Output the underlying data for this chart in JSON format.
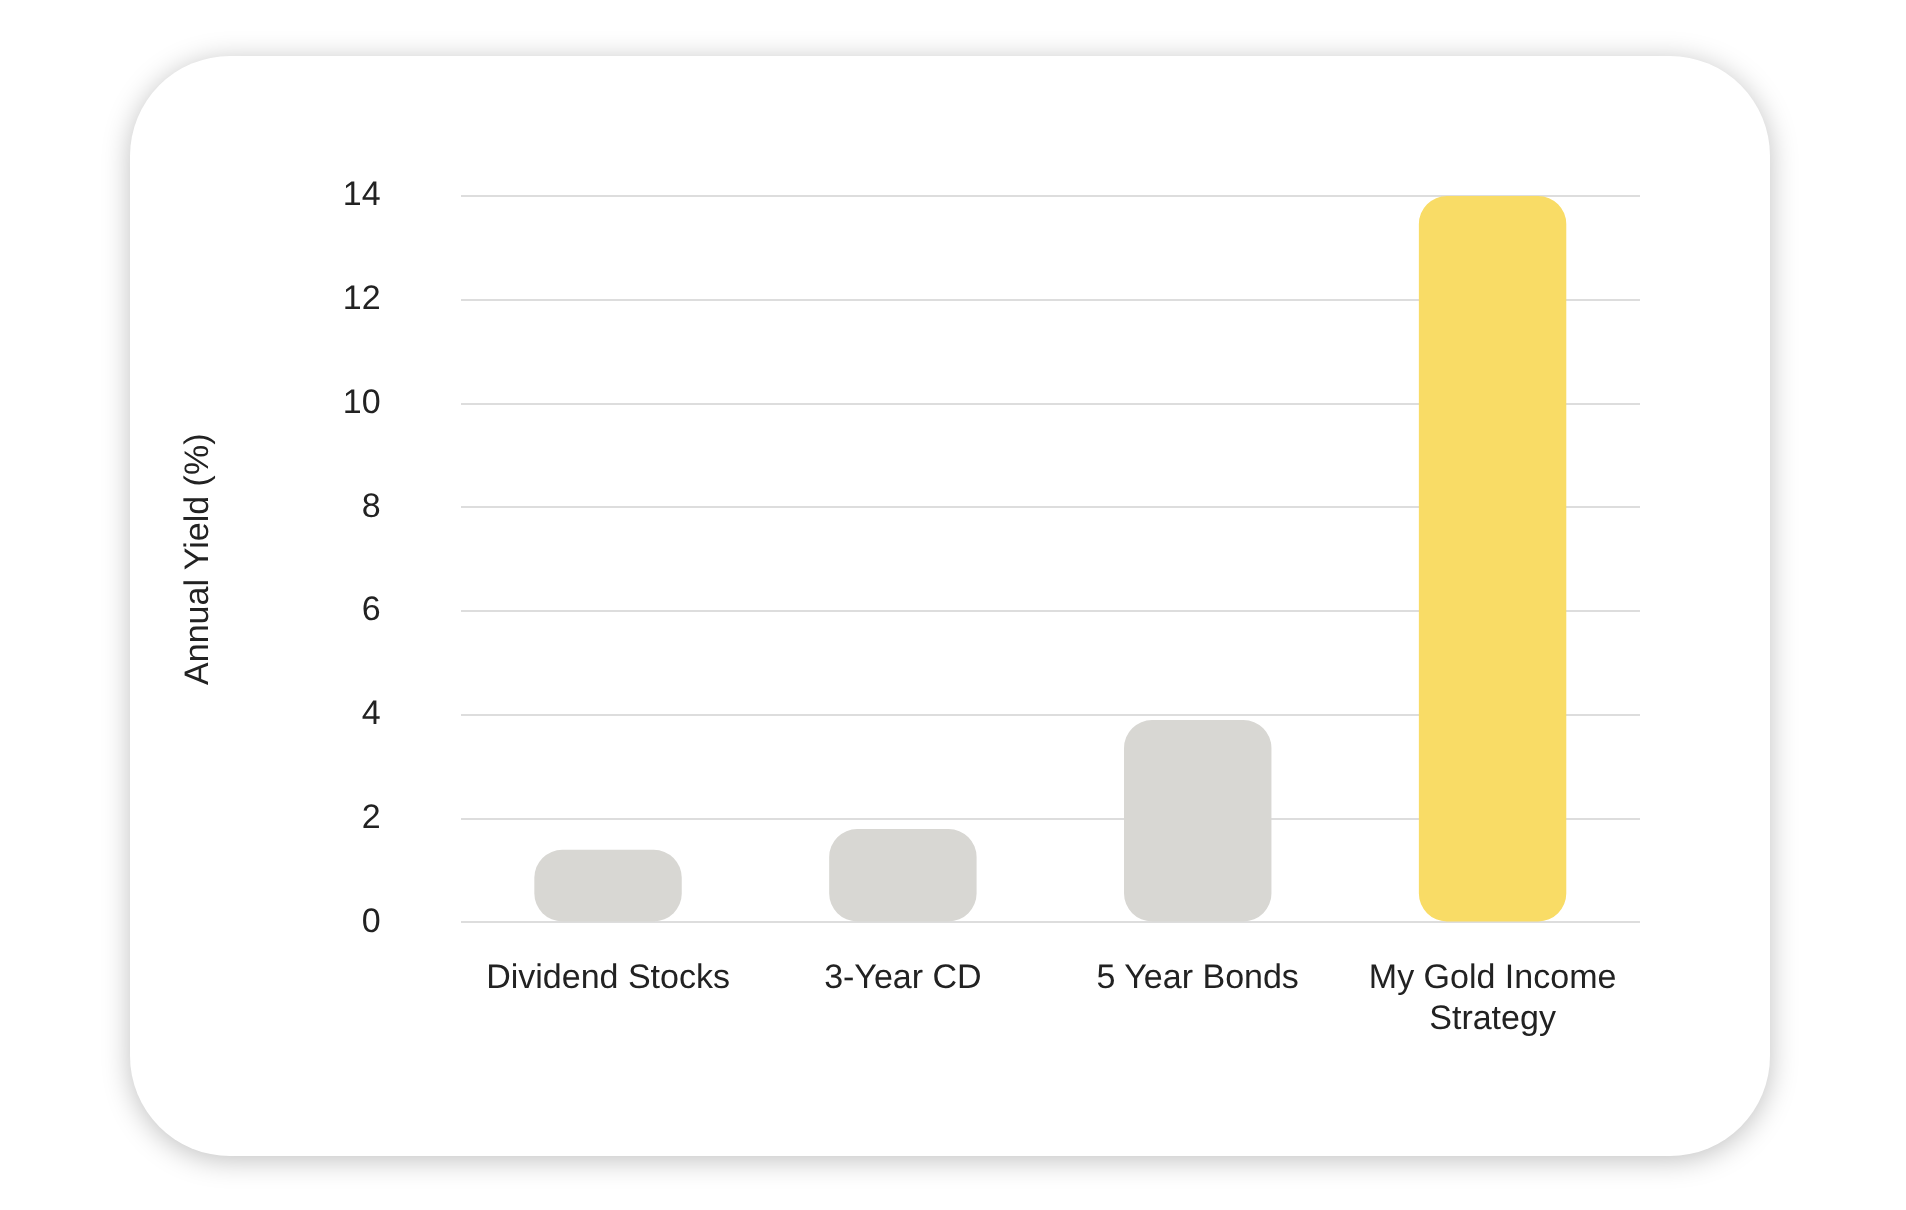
{
  "chart_data": {
    "type": "bar",
    "ylabel": "Annual Yield (%)",
    "categories": [
      "Dividend Stocks",
      "3-Year CD",
      "5 Year Bonds",
      "My Gold Income Strategy"
    ],
    "values": [
      1.4,
      1.8,
      3.9,
      14
    ],
    "colors": [
      "#d8d7d3",
      "#d8d7d3",
      "#d8d7d3",
      "#f9dc66"
    ],
    "ylim": [
      0,
      14
    ],
    "yticks": [
      0,
      2,
      4,
      6,
      8,
      10,
      12,
      14
    ],
    "grid": "y",
    "legend": false
  }
}
